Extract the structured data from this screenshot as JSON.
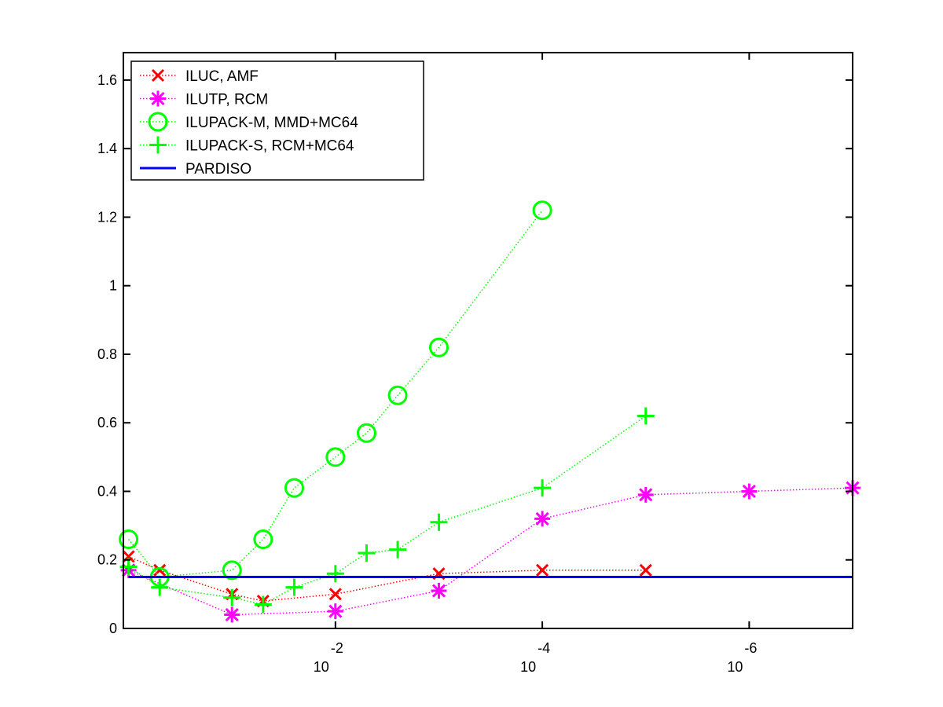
{
  "chart_data": {
    "type": "line",
    "x_scale": "log-reversed",
    "x_tick_labels": [
      {
        "value": 0.01,
        "base": "10",
        "exp": "-2"
      },
      {
        "value": 0.0001,
        "base": "10",
        "exp": "-4"
      },
      {
        "value": 1e-06,
        "base": "10",
        "exp": "-6"
      }
    ],
    "xlim": [
      1.122,
      1e-07
    ],
    "ylim": [
      0,
      1.68
    ],
    "y_ticks": [
      "0",
      "0.2",
      "0.4",
      "0.6",
      "0.8",
      "1",
      "1.2",
      "1.4",
      "1.6"
    ],
    "y_tick_values": [
      0,
      0.2,
      0.4,
      0.6,
      0.8,
      1.0,
      1.2,
      1.4,
      1.6
    ],
    "legend_position": "top-left",
    "grid": false,
    "series": [
      {
        "name": "ILUC, AMF",
        "color": "#ff0000",
        "marker": "x",
        "line_style": "dotted",
        "points": [
          [
            1,
            0.21
          ],
          [
            0.5,
            0.17
          ],
          [
            0.1,
            0.1
          ],
          [
            0.05,
            0.08
          ],
          [
            0.01,
            0.1
          ],
          [
            0.001,
            0.16
          ],
          [
            0.0001,
            0.17
          ],
          [
            1e-05,
            0.17
          ]
        ]
      },
      {
        "name": "ILUTP, RCM",
        "color": "#ff00ff",
        "marker": "asterisk",
        "line_style": "dotted",
        "points": [
          [
            1,
            0.17
          ],
          [
            0.1,
            0.04
          ],
          [
            0.01,
            0.05
          ],
          [
            0.001,
            0.11
          ],
          [
            0.0001,
            0.32
          ],
          [
            1e-05,
            0.39
          ],
          [
            1e-06,
            0.4
          ],
          [
            1e-07,
            0.41
          ]
        ]
      },
      {
        "name": "ILUPACK-M, MMD+MC64",
        "color": "#00ff00",
        "marker": "circle",
        "line_style": "dotted",
        "points": [
          [
            1,
            0.26
          ],
          [
            0.5,
            0.15
          ],
          [
            0.1,
            0.17
          ],
          [
            0.05,
            0.26
          ],
          [
            0.025,
            0.41
          ],
          [
            0.01,
            0.5
          ],
          [
            0.005,
            0.57
          ],
          [
            0.0025,
            0.68
          ],
          [
            0.001,
            0.82
          ],
          [
            0.0001,
            1.22
          ]
        ]
      },
      {
        "name": "ILUPACK-S, RCM+MC64",
        "color": "#00ff00",
        "marker": "plus",
        "line_style": "dotted",
        "points": [
          [
            1,
            0.18
          ],
          [
            0.5,
            0.12
          ],
          [
            0.1,
            0.09
          ],
          [
            0.05,
            0.07
          ],
          [
            0.025,
            0.12
          ],
          [
            0.01,
            0.16
          ],
          [
            0.005,
            0.22
          ],
          [
            0.0025,
            0.23
          ],
          [
            0.001,
            0.31
          ],
          [
            0.0001,
            0.41
          ],
          [
            1e-05,
            0.62
          ]
        ]
      },
      {
        "name": "PARDISO",
        "color": "#0000ff",
        "marker": "none",
        "line_style": "solid",
        "points": [
          [
            1,
            0.15
          ],
          [
            1e-07,
            0.15
          ]
        ]
      }
    ]
  }
}
